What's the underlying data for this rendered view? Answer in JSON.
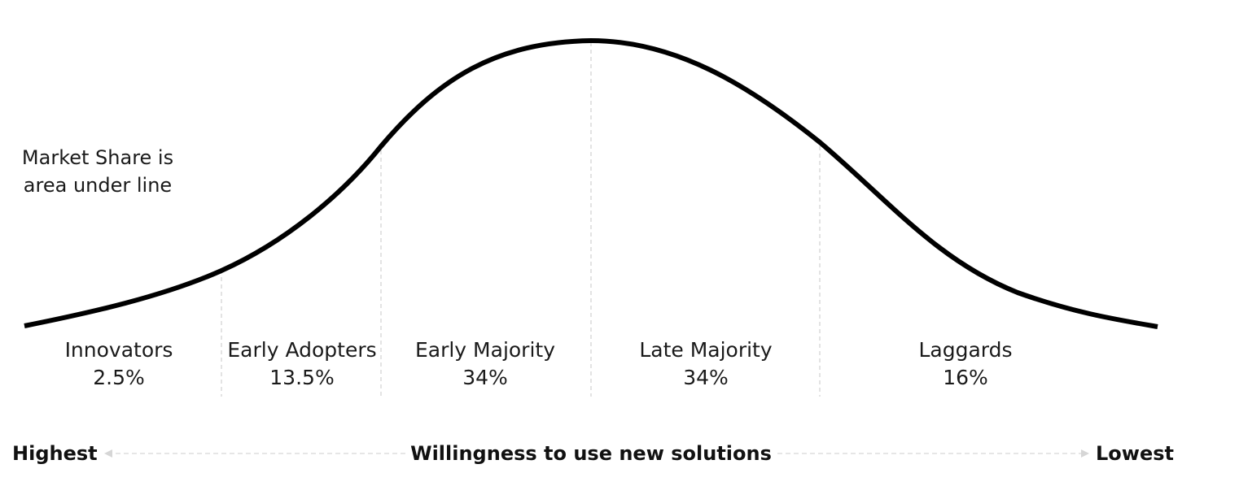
{
  "note": {
    "line1": "Market Share is",
    "line2": "area under line"
  },
  "segments": [
    {
      "name": "Innovators",
      "share": "2.5%"
    },
    {
      "name": "Early Adopters",
      "share": "13.5%"
    },
    {
      "name": "Early Majority",
      "share": "34%"
    },
    {
      "name": "Late Majority",
      "share": "34%"
    },
    {
      "name": "Laggards",
      "share": "16%"
    }
  ],
  "axis": {
    "left": "Highest",
    "center": "Willingness to use new solutions",
    "right": "Lowest"
  },
  "colors": {
    "curve": "#000000",
    "divider": "#d0d0d0",
    "arrow": "#d6d6d6",
    "text": "#1a1a1a"
  }
}
